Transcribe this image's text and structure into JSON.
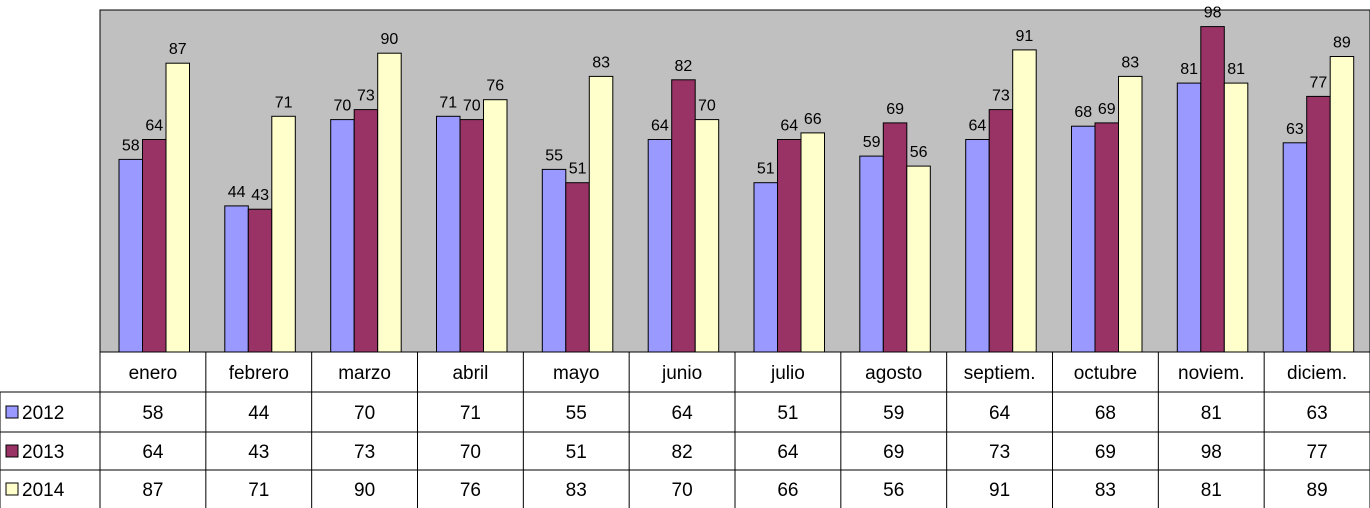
{
  "chart_data": {
    "type": "bar",
    "title": "",
    "xlabel": "",
    "ylabel": "",
    "categories": [
      "enero",
      "febrero",
      "marzo",
      "abril",
      "mayo",
      "junio",
      "julio",
      "agosto",
      "septiem.",
      "octubre",
      "noviem.",
      "diciem."
    ],
    "series": [
      {
        "name": "2012",
        "color": "#9999ff",
        "values": [
          58,
          44,
          70,
          71,
          55,
          64,
          51,
          59,
          64,
          68,
          81,
          63
        ]
      },
      {
        "name": "2013",
        "color": "#993366",
        "values": [
          64,
          43,
          73,
          70,
          51,
          82,
          64,
          69,
          73,
          69,
          98,
          77
        ]
      },
      {
        "name": "2014",
        "color": "#ffffcc",
        "values": [
          87,
          71,
          90,
          76,
          83,
          70,
          66,
          56,
          91,
          83,
          81,
          89
        ]
      }
    ],
    "ylim": [
      0,
      100
    ],
    "grid": false,
    "legend": "data-table-left",
    "plot_background": "#c0c0c0",
    "data_labels": true,
    "data_table": true
  }
}
